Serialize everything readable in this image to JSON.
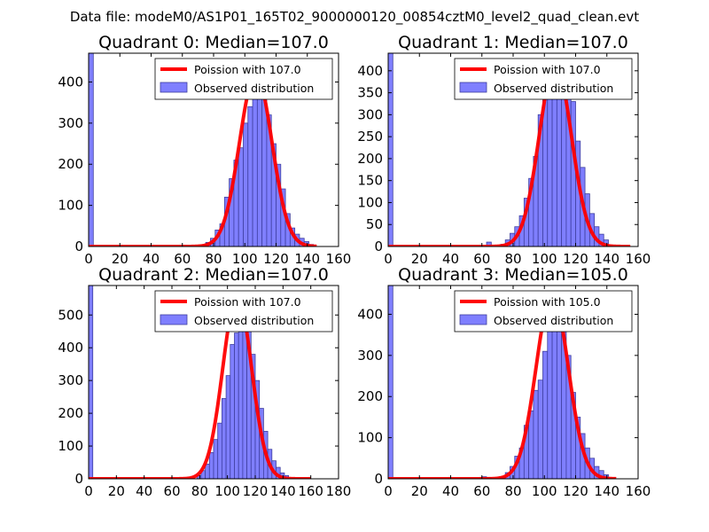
{
  "suptitle": "Data file: modeM0/AS1P01_165T02_9000000120_00854cztM0_level2_quad_clean.evt",
  "legend_labels": {
    "poisson_prefix": "Poission with ",
    "observed": "Observed distribution"
  },
  "colors": {
    "hist_fill": "#7f7fff",
    "hist_edge": "#3f3f9f",
    "poisson_line": "#ff0000"
  },
  "chart_data": [
    {
      "type": "bar",
      "title": "Quadrant 0: Median=107.0",
      "median": 107.0,
      "xlim": [
        0,
        160
      ],
      "ylim": [
        0,
        470
      ],
      "xticks": [
        0,
        20,
        40,
        60,
        80,
        100,
        120,
        140,
        160
      ],
      "yticks": [
        0,
        100,
        200,
        300,
        400
      ],
      "bin_width": 3,
      "bins": [
        {
          "x": 0,
          "y": 470
        },
        {
          "x": 60,
          "y": 3
        },
        {
          "x": 63,
          "y": 2
        },
        {
          "x": 72,
          "y": 4
        },
        {
          "x": 75,
          "y": 10
        },
        {
          "x": 78,
          "y": 20
        },
        {
          "x": 81,
          "y": 40
        },
        {
          "x": 84,
          "y": 55
        },
        {
          "x": 87,
          "y": 120
        },
        {
          "x": 90,
          "y": 165
        },
        {
          "x": 93,
          "y": 210
        },
        {
          "x": 96,
          "y": 240
        },
        {
          "x": 99,
          "y": 300
        },
        {
          "x": 102,
          "y": 340
        },
        {
          "x": 105,
          "y": 440
        },
        {
          "x": 108,
          "y": 420
        },
        {
          "x": 111,
          "y": 375
        },
        {
          "x": 114,
          "y": 320
        },
        {
          "x": 117,
          "y": 250
        },
        {
          "x": 120,
          "y": 200
        },
        {
          "x": 123,
          "y": 140
        },
        {
          "x": 126,
          "y": 80
        },
        {
          "x": 129,
          "y": 45
        },
        {
          "x": 132,
          "y": 30
        },
        {
          "x": 135,
          "y": 20
        },
        {
          "x": 138,
          "y": 12
        },
        {
          "x": 141,
          "y": 5
        }
      ],
      "poisson": {
        "lambda": 107,
        "peak": 420,
        "x_range": [
          0,
          146
        ]
      }
    },
    {
      "type": "bar",
      "title": "Quadrant 1: Median=107.0",
      "median": 107.0,
      "xlim": [
        0,
        160
      ],
      "ylim": [
        0,
        440
      ],
      "xticks": [
        0,
        20,
        40,
        60,
        80,
        100,
        120,
        140,
        160
      ],
      "yticks": [
        0,
        50,
        100,
        150,
        200,
        250,
        300,
        350,
        400
      ],
      "bin_width": 3,
      "bins": [
        {
          "x": 0,
          "y": 440
        },
        {
          "x": 63,
          "y": 10
        },
        {
          "x": 72,
          "y": 5
        },
        {
          "x": 75,
          "y": 15
        },
        {
          "x": 78,
          "y": 30
        },
        {
          "x": 81,
          "y": 45
        },
        {
          "x": 84,
          "y": 70
        },
        {
          "x": 87,
          "y": 110
        },
        {
          "x": 90,
          "y": 155
        },
        {
          "x": 93,
          "y": 205
        },
        {
          "x": 96,
          "y": 300
        },
        {
          "x": 99,
          "y": 350
        },
        {
          "x": 102,
          "y": 395
        },
        {
          "x": 105,
          "y": 405
        },
        {
          "x": 108,
          "y": 425
        },
        {
          "x": 111,
          "y": 410
        },
        {
          "x": 114,
          "y": 370
        },
        {
          "x": 117,
          "y": 330
        },
        {
          "x": 120,
          "y": 240
        },
        {
          "x": 123,
          "y": 180
        },
        {
          "x": 126,
          "y": 120
        },
        {
          "x": 129,
          "y": 75
        },
        {
          "x": 132,
          "y": 45
        },
        {
          "x": 135,
          "y": 28
        },
        {
          "x": 138,
          "y": 15
        }
      ],
      "poisson": {
        "lambda": 107,
        "peak": 415,
        "x_range": [
          0,
          155
        ]
      }
    },
    {
      "type": "bar",
      "title": "Quadrant 2: Median=107.0",
      "median": 107.0,
      "xlim": [
        0,
        180
      ],
      "ylim": [
        0,
        590
      ],
      "xticks": [
        0,
        20,
        40,
        60,
        80,
        100,
        120,
        140,
        160,
        180
      ],
      "yticks": [
        0,
        100,
        200,
        300,
        400,
        500
      ],
      "bin_width": 3,
      "bins": [
        {
          "x": 0,
          "y": 590
        },
        {
          "x": 78,
          "y": 10
        },
        {
          "x": 81,
          "y": 25
        },
        {
          "x": 84,
          "y": 45
        },
        {
          "x": 87,
          "y": 80
        },
        {
          "x": 90,
          "y": 120
        },
        {
          "x": 93,
          "y": 170
        },
        {
          "x": 96,
          "y": 245
        },
        {
          "x": 99,
          "y": 315
        },
        {
          "x": 102,
          "y": 410
        },
        {
          "x": 105,
          "y": 445
        },
        {
          "x": 108,
          "y": 515
        },
        {
          "x": 111,
          "y": 530
        },
        {
          "x": 114,
          "y": 470
        },
        {
          "x": 117,
          "y": 380
        },
        {
          "x": 120,
          "y": 300
        },
        {
          "x": 123,
          "y": 215
        },
        {
          "x": 126,
          "y": 145
        },
        {
          "x": 129,
          "y": 90
        },
        {
          "x": 132,
          "y": 55
        },
        {
          "x": 135,
          "y": 35
        },
        {
          "x": 138,
          "y": 18
        },
        {
          "x": 141,
          "y": 10
        }
      ],
      "poisson": {
        "lambda": 107,
        "peak": 560,
        "x_range": [
          0,
          160
        ]
      }
    },
    {
      "type": "bar",
      "title": "Quadrant 3: Median=105.0",
      "median": 105.0,
      "xlim": [
        0,
        160
      ],
      "ylim": [
        0,
        470
      ],
      "xticks": [
        0,
        20,
        40,
        60,
        80,
        100,
        120,
        140,
        160
      ],
      "yticks": [
        0,
        100,
        200,
        300,
        400
      ],
      "bin_width": 3,
      "bins": [
        {
          "x": 0,
          "y": 470
        },
        {
          "x": 60,
          "y": 5
        },
        {
          "x": 63,
          "y": 3
        },
        {
          "x": 72,
          "y": 5
        },
        {
          "x": 75,
          "y": 15
        },
        {
          "x": 78,
          "y": 30
        },
        {
          "x": 81,
          "y": 55
        },
        {
          "x": 84,
          "y": 75
        },
        {
          "x": 87,
          "y": 130
        },
        {
          "x": 90,
          "y": 165
        },
        {
          "x": 93,
          "y": 215
        },
        {
          "x": 96,
          "y": 240
        },
        {
          "x": 99,
          "y": 310
        },
        {
          "x": 102,
          "y": 360
        },
        {
          "x": 105,
          "y": 400
        },
        {
          "x": 108,
          "y": 430
        },
        {
          "x": 111,
          "y": 370
        },
        {
          "x": 114,
          "y": 300
        },
        {
          "x": 117,
          "y": 210
        },
        {
          "x": 120,
          "y": 150
        },
        {
          "x": 123,
          "y": 110
        },
        {
          "x": 126,
          "y": 75
        },
        {
          "x": 129,
          "y": 50
        },
        {
          "x": 132,
          "y": 30
        },
        {
          "x": 135,
          "y": 20
        },
        {
          "x": 138,
          "y": 10
        }
      ],
      "poisson": {
        "lambda": 105,
        "peak": 450,
        "x_range": [
          0,
          146
        ]
      }
    }
  ]
}
